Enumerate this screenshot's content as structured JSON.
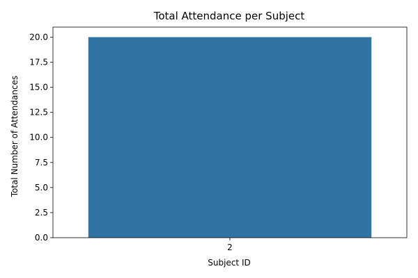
{
  "chart_data": {
    "type": "bar",
    "title": "Total Attendance per Subject",
    "xlabel": "Subject ID",
    "ylabel": "Total Number of Attendances",
    "categories": [
      "2"
    ],
    "values": [
      20
    ],
    "ylim": [
      0,
      21
    ],
    "yticks": [
      "0.0",
      "2.5",
      "5.0",
      "7.5",
      "10.0",
      "12.5",
      "15.0",
      "17.5",
      "20.0"
    ],
    "bar_color": "#3274a1",
    "grid": false,
    "legend": "none"
  }
}
